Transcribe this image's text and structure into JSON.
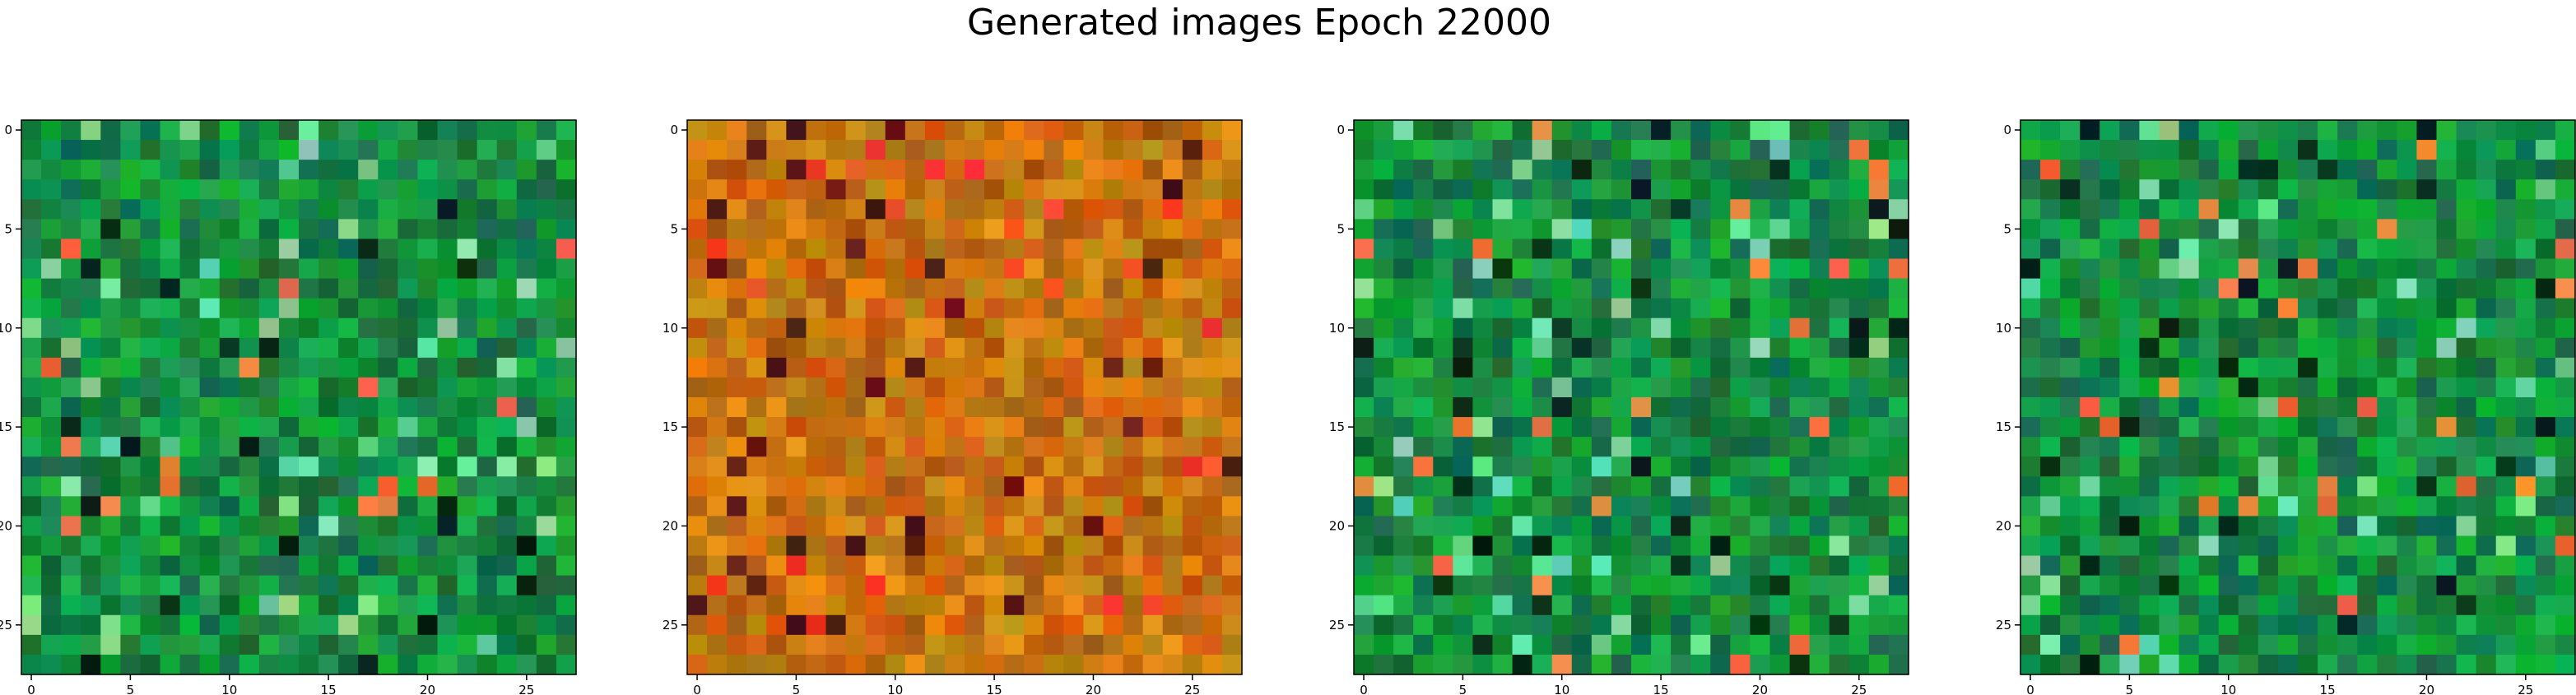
{
  "figure": {
    "suptitle": "Generated images Epoch 22000"
  },
  "chart_data": {
    "type": "heatmap",
    "grid_size": 28,
    "n_panels": 4,
    "axes": {
      "xlim": [
        -0.5,
        27.5
      ],
      "ylim": [
        27.5,
        -0.5
      ],
      "x_ticks": [
        "0",
        "5",
        "10",
        "15",
        "20",
        "25"
      ],
      "y_ticks": [
        "0",
        "5",
        "10",
        "15",
        "20",
        "25"
      ],
      "xlabel": "",
      "ylabel": "",
      "grid": false
    },
    "panels": [
      {
        "palette": "green",
        "seed": 11
      },
      {
        "palette": "orange",
        "seed": 29
      },
      {
        "palette": "green2",
        "seed": 47
      },
      {
        "palette": "green3",
        "seed": 83
      }
    ],
    "colors": {
      "green_base": "#0a8a3a",
      "orange_base": "#c8780a",
      "frame": "#000000"
    }
  }
}
